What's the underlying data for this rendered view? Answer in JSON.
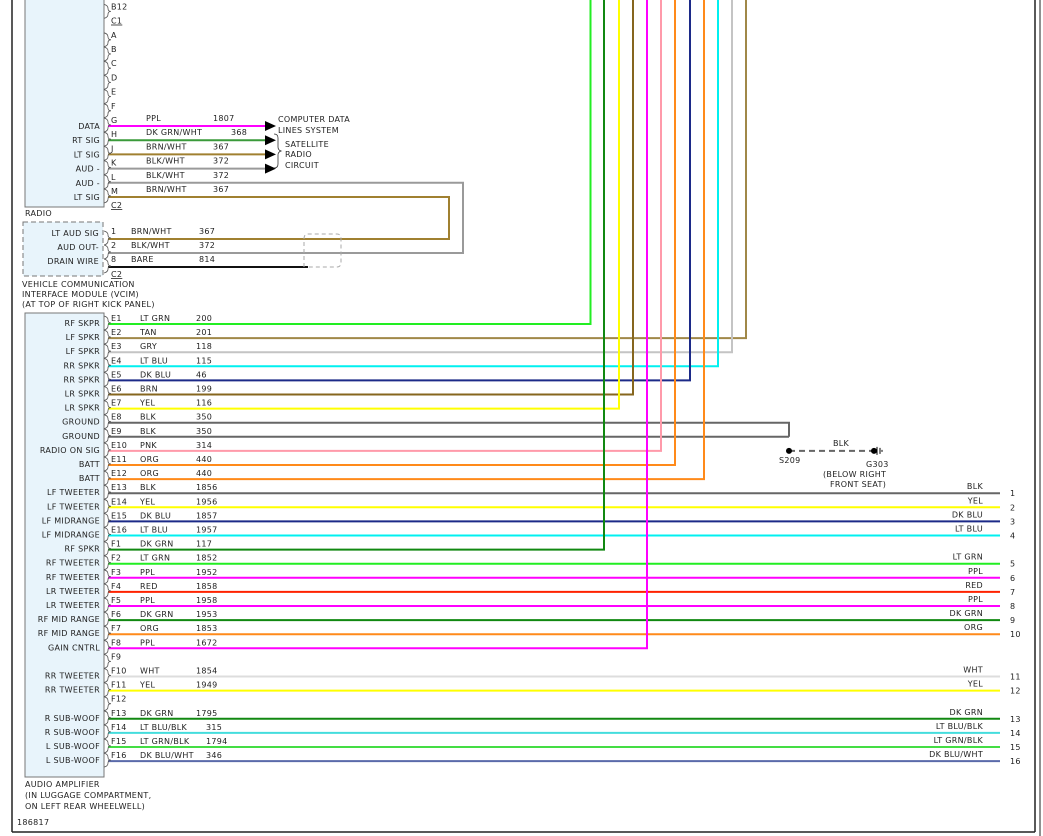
{
  "diagram_id": "186817",
  "colors": {
    "PPL": "#ff00ff",
    "DK GRN/WHT": "#3a9a3a",
    "BRN/WHT": "#a08030",
    "BLK/WHT": "#9a9a9a",
    "LT GRN": "#22ee22",
    "TAN": "#a08848",
    "GRY": "#c4c4c4",
    "LT BLU": "#00f0f0",
    "DK BLU": "#1c2a88",
    "BRN": "#86661e",
    "YEL": "#ffff00",
    "BLK": "#666666",
    "PNK": "#ff9aaa",
    "ORG": "#ff8a1a",
    "DK GRN": "#118811",
    "RED": "#ff2200",
    "WHT": "#dddddd",
    "LT BLU/BLK": "#44dddd",
    "LT GRN/BLK": "#44dd44",
    "DK BLU/WHT": "#5a6aaa",
    "BARE": "#111111",
    "box_fill": "#e8f4fb"
  },
  "radio": {
    "label": "RADIO",
    "pins": [
      {
        "pin": "B12"
      },
      {
        "pin": "C1",
        "connector": true
      },
      {
        "pin": "A"
      },
      {
        "pin": "B"
      },
      {
        "pin": "C"
      },
      {
        "pin": "D"
      },
      {
        "pin": "E"
      },
      {
        "pin": "F"
      },
      {
        "pin": "G",
        "func": "DATA",
        "color": "PPL",
        "circuit": "1807"
      },
      {
        "pin": "H",
        "func": "RT SIG",
        "color": "DK GRN/WHT",
        "circuit": "368"
      },
      {
        "pin": "J",
        "func": "LT SIG",
        "color": "BRN/WHT",
        "circuit": "367"
      },
      {
        "pin": "K",
        "func": "AUD -",
        "color": "BLK/WHT",
        "circuit": "372"
      },
      {
        "pin": "L",
        "func": "AUD -",
        "color": "BLK/WHT",
        "circuit": "372"
      },
      {
        "pin": "M",
        "func": "LT SIG",
        "color": "BRN/WHT",
        "circuit": "367"
      },
      {
        "pin": "C2",
        "connector": true
      }
    ],
    "destinations": {
      "computer_data": [
        "COMPUTER DATA",
        "LINES SYSTEM"
      ],
      "satellite": [
        "SATELLITE",
        "RADIO",
        "CIRCUIT"
      ]
    }
  },
  "vcim": {
    "label": [
      "VEHICLE COMMUNICATION",
      "INTERFACE MODULE (VCIM)",
      "(AT TOP OF RIGHT KICK PANEL)"
    ],
    "pins": [
      {
        "pin": "1",
        "func": "LT AUD SIG",
        "color": "BRN/WHT",
        "circuit": "367"
      },
      {
        "pin": "2",
        "func": "AUD OUT-",
        "color": "BLK/WHT",
        "circuit": "372"
      },
      {
        "pin": "8",
        "func": "DRAIN WIRE",
        "color": "BARE",
        "circuit": "814"
      }
    ],
    "connector": "C2"
  },
  "ground": {
    "wire_color": "BLK",
    "splice": "S209",
    "ground": "G303",
    "location": [
      "(BELOW RIGHT",
      "FRONT SEAT)"
    ]
  },
  "amplifier": {
    "label": [
      "AUDIO AMPLIFIER",
      "(IN LUGGAGE COMPARTMENT,",
      "ON LEFT REAR WHEELWELL)"
    ],
    "pins": [
      {
        "pin": "E1",
        "func": "RF SKPR",
        "color": "LT GRN",
        "circuit": "200"
      },
      {
        "pin": "E2",
        "func": "LF SPKR",
        "color": "TAN",
        "circuit": "201"
      },
      {
        "pin": "E3",
        "func": "LF SPKR",
        "color": "GRY",
        "circuit": "118"
      },
      {
        "pin": "E4",
        "func": "RR SPKR",
        "color": "LT BLU",
        "circuit": "115"
      },
      {
        "pin": "E5",
        "func": "RR SPKR",
        "color": "DK BLU",
        "circuit": "46"
      },
      {
        "pin": "E6",
        "func": "LR SPKR",
        "color": "BRN",
        "circuit": "199"
      },
      {
        "pin": "E7",
        "func": "LR SPKR",
        "color": "YEL",
        "circuit": "116"
      },
      {
        "pin": "E8",
        "func": "GROUND",
        "color": "BLK",
        "circuit": "350"
      },
      {
        "pin": "E9",
        "func": "GROUND",
        "color": "BLK",
        "circuit": "350"
      },
      {
        "pin": "E10",
        "func": "RADIO ON SIG",
        "color": "PNK",
        "circuit": "314"
      },
      {
        "pin": "E11",
        "func": "BATT",
        "color": "ORG",
        "circuit": "440"
      },
      {
        "pin": "E12",
        "func": "BATT",
        "color": "ORG",
        "circuit": "440"
      },
      {
        "pin": "E13",
        "func": "LF TWEETER",
        "color": "BLK",
        "circuit": "1856",
        "right_color": "BLK",
        "right_num": "1"
      },
      {
        "pin": "E14",
        "func": "LF TWEETER",
        "color": "YEL",
        "circuit": "1956",
        "right_color": "YEL",
        "right_num": "2"
      },
      {
        "pin": "E15",
        "func": "LF MIDRANGE",
        "color": "DK BLU",
        "circuit": "1857",
        "right_color": "DK BLU",
        "right_num": "3"
      },
      {
        "pin": "E16",
        "func": "LF MIDRANGE",
        "color": "LT BLU",
        "circuit": "1957",
        "right_color": "LT BLU",
        "right_num": "4"
      },
      {
        "pin": "F1",
        "func": "RF SPKR",
        "color": "DK GRN",
        "circuit": "117"
      },
      {
        "pin": "F2",
        "func": "RF TWEETER",
        "color": "LT GRN",
        "circuit": "1852",
        "right_color": "LT GRN",
        "right_num": "5"
      },
      {
        "pin": "F3",
        "func": "RF TWEETER",
        "color": "PPL",
        "circuit": "1952",
        "right_color": "PPL",
        "right_num": "6"
      },
      {
        "pin": "F4",
        "func": "LR TWEETER",
        "color": "RED",
        "circuit": "1858",
        "right_color": "RED",
        "right_num": "7"
      },
      {
        "pin": "F5",
        "func": "LR TWEETER",
        "color": "PPL",
        "circuit": "1958",
        "right_color": "PPL",
        "right_num": "8"
      },
      {
        "pin": "F6",
        "func": "RF MID RANGE",
        "color": "DK GRN",
        "circuit": "1953",
        "right_color": "DK GRN",
        "right_num": "9"
      },
      {
        "pin": "F7",
        "func": "RF MID RANGE",
        "color": "ORG",
        "circuit": "1853",
        "right_color": "ORG",
        "right_num": "10"
      },
      {
        "pin": "F8",
        "func": "GAIN CNTRL",
        "color": "PPL",
        "circuit": "1672"
      },
      {
        "pin": "F9"
      },
      {
        "pin": "F10",
        "func": "RR TWEETER",
        "color": "WHT",
        "circuit": "1854",
        "right_color": "WHT",
        "right_num": "11"
      },
      {
        "pin": "F11",
        "func": "RR TWEETER",
        "color": "YEL",
        "circuit": "1949",
        "right_color": "YEL",
        "right_num": "12"
      },
      {
        "pin": "F12"
      },
      {
        "pin": "F13",
        "func": "R SUB-WOOF",
        "color": "DK GRN",
        "circuit": "1795",
        "right_color": "DK GRN",
        "right_num": "13"
      },
      {
        "pin": "F14",
        "func": "R SUB-WOOF",
        "color": "LT BLU/BLK",
        "circuit": "315",
        "right_color": "LT BLU/BLK",
        "right_num": "14"
      },
      {
        "pin": "F15",
        "func": "L SUB-WOOF",
        "color": "LT GRN/BLK",
        "circuit": "1794",
        "right_color": "LT GRN/BLK",
        "right_num": "15"
      },
      {
        "pin": "F16",
        "func": "L SUB-WOOF",
        "color": "DK BLU/WHT",
        "circuit": "346",
        "right_color": "DK BLU/WHT",
        "right_num": "16"
      }
    ]
  }
}
